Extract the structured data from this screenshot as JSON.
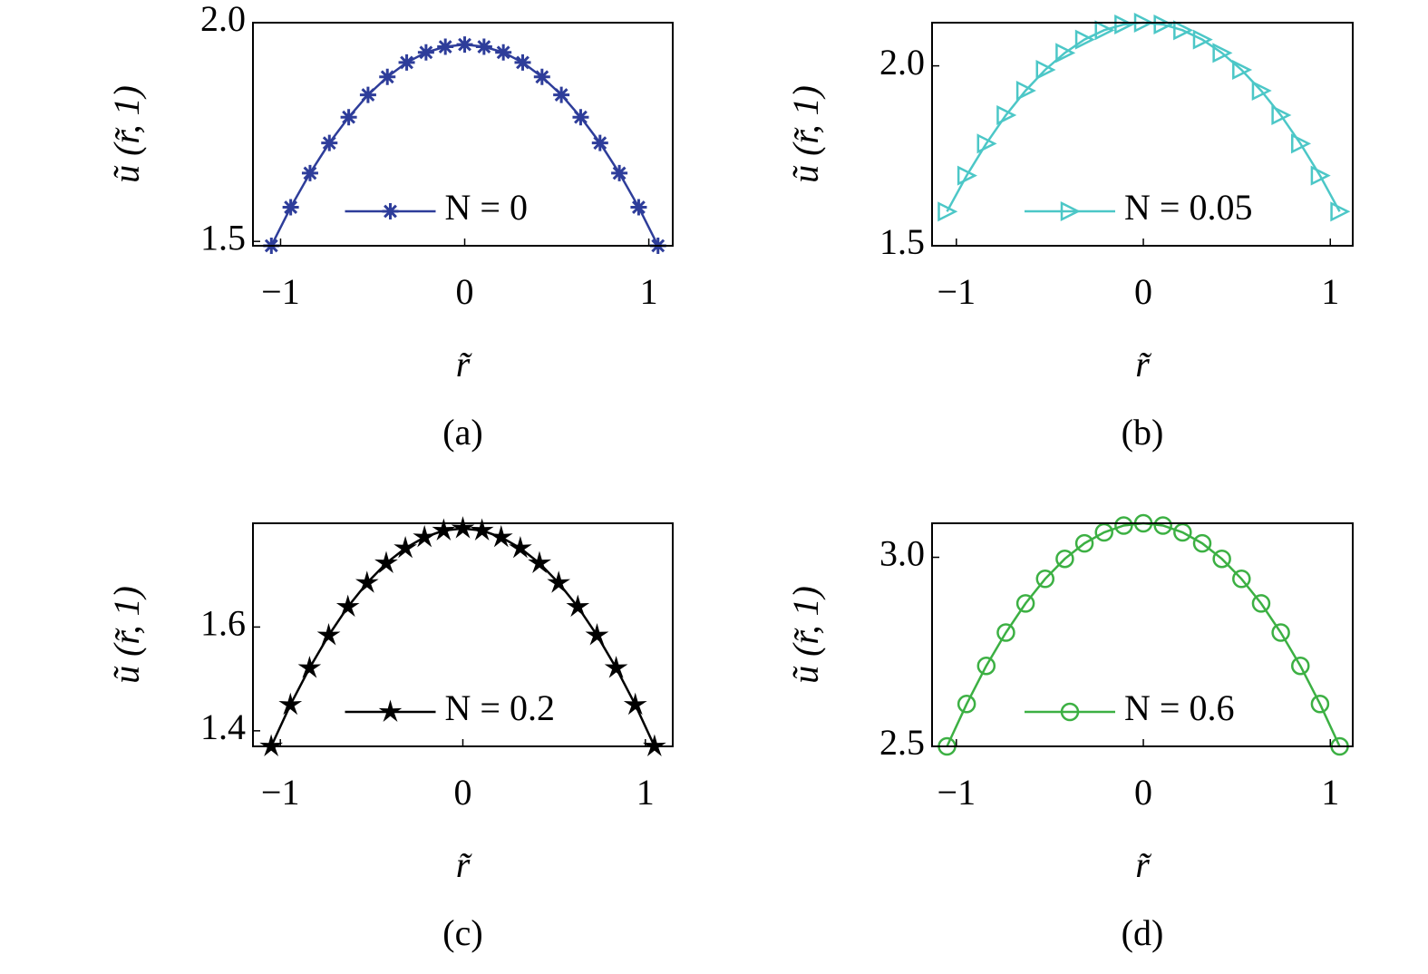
{
  "chart_data": [
    {
      "type": "line",
      "panel_label": "(a)",
      "xlabel": "r̃",
      "ylabel": "ũ (r̃, 1)",
      "x": [
        -1.05,
        -0.945,
        -0.84,
        -0.735,
        -0.63,
        -0.525,
        -0.42,
        -0.315,
        -0.21,
        -0.105,
        0,
        0.105,
        0.21,
        0.315,
        0.42,
        0.525,
        0.63,
        0.735,
        0.84,
        0.945,
        1.05
      ],
      "series": [
        {
          "name": "N = 0",
          "color": "#2e3d9a",
          "marker": "asterisk",
          "values": [
            1.49,
            1.578,
            1.656,
            1.725,
            1.784,
            1.835,
            1.876,
            1.909,
            1.932,
            1.945,
            1.95,
            1.945,
            1.932,
            1.909,
            1.876,
            1.835,
            1.784,
            1.725,
            1.656,
            1.578,
            1.49
          ]
        }
      ],
      "xlim": [
        -1.15,
        1.13
      ],
      "xticks": [
        {
          "value": -1,
          "label": "−1"
        },
        0,
        1
      ],
      "ylim": [
        1.49,
        2.0
      ],
      "yticks": [
        1.5,
        {
          "value": 2,
          "label": "2.0"
        }
      ],
      "legend": "lower center"
    },
    {
      "type": "line",
      "panel_label": "(b)",
      "xlabel": "r̃",
      "ylabel": "ũ (r̃, 1)",
      "x": [
        -1.05,
        -0.945,
        -0.84,
        -0.735,
        -0.63,
        -0.525,
        -0.42,
        -0.315,
        -0.21,
        -0.105,
        0,
        0.105,
        0.21,
        0.315,
        0.42,
        0.525,
        0.63,
        0.735,
        0.84,
        0.945,
        1.05
      ],
      "series": [
        {
          "name": "N = 0.05",
          "color": "#4cc7c7",
          "marker": "triangle-right",
          "values": [
            1.595,
            1.695,
            1.784,
            1.863,
            1.931,
            1.989,
            2.036,
            2.073,
            2.099,
            2.115,
            2.12,
            2.115,
            2.099,
            2.073,
            2.036,
            1.989,
            1.931,
            1.863,
            1.784,
            1.695,
            1.595
          ]
        }
      ],
      "xlim": [
        -1.13,
        1.12
      ],
      "xticks": [
        {
          "value": -1,
          "label": "−1"
        },
        0,
        1
      ],
      "ylim": [
        1.5,
        2.12
      ],
      "yticks": [
        1.5,
        {
          "value": 2,
          "label": "2.0"
        }
      ],
      "legend": "lower center"
    },
    {
      "type": "line",
      "panel_label": "(c)",
      "xlabel": "r̃",
      "ylabel": "ũ (r̃, 1)",
      "x": [
        -1.05,
        -0.945,
        -0.84,
        -0.735,
        -0.63,
        -0.525,
        -0.42,
        -0.315,
        -0.21,
        -0.105,
        0,
        0.105,
        0.21,
        0.315,
        0.42,
        0.525,
        0.63,
        0.735,
        0.84,
        0.945,
        1.05
      ],
      "series": [
        {
          "name": "N = 0.2",
          "color": "#000000",
          "marker": "star",
          "values": [
            1.37,
            1.45,
            1.521,
            1.584,
            1.639,
            1.685,
            1.723,
            1.752,
            1.773,
            1.786,
            1.79,
            1.786,
            1.773,
            1.752,
            1.723,
            1.685,
            1.639,
            1.584,
            1.521,
            1.45,
            1.37
          ]
        }
      ],
      "xlim": [
        -1.15,
        1.15
      ],
      "xticks": [
        {
          "value": -1,
          "label": "−1"
        },
        0,
        1
      ],
      "ylim": [
        1.37,
        1.8
      ],
      "yticks": [
        1.4,
        1.6
      ],
      "legend": "lower center"
    },
    {
      "type": "line",
      "panel_label": "(d)",
      "xlabel": "r̃",
      "ylabel": "ũ (r̃, 1)",
      "x": [
        -1.05,
        -0.945,
        -0.84,
        -0.735,
        -0.63,
        -0.525,
        -0.42,
        -0.315,
        -0.21,
        -0.105,
        0,
        0.105,
        0.21,
        0.315,
        0.42,
        0.525,
        0.63,
        0.735,
        0.84,
        0.945,
        1.05
      ],
      "series": [
        {
          "name": "N = 0.6",
          "color": "#3cb043",
          "marker": "circle",
          "values": [
            2.5,
            2.612,
            2.713,
            2.801,
            2.878,
            2.943,
            2.996,
            3.037,
            3.066,
            3.084,
            3.09,
            3.084,
            3.066,
            3.037,
            2.996,
            2.943,
            2.878,
            2.801,
            2.713,
            2.612,
            2.5
          ]
        }
      ],
      "xlim": [
        -1.13,
        1.12
      ],
      "xticks": [
        {
          "value": -1,
          "label": "−1"
        },
        0,
        1
      ],
      "ylim": [
        2.5,
        3.09
      ],
      "yticks": [
        2.5,
        {
          "value": 3,
          "label": "3.0"
        }
      ],
      "legend": "lower center"
    }
  ]
}
